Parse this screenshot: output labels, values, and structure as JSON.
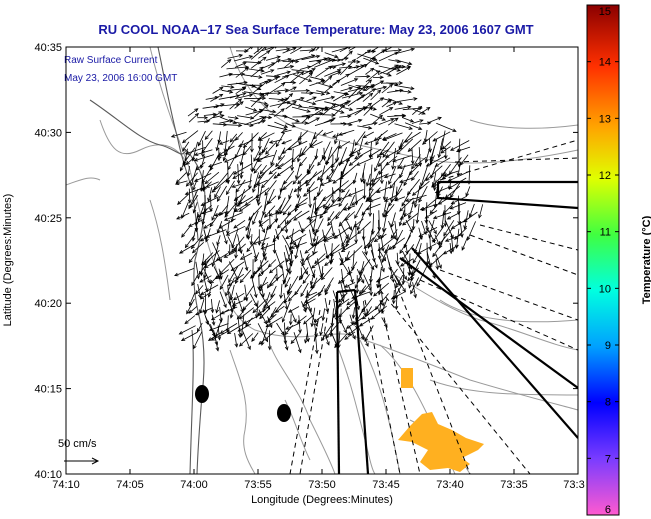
{
  "chart_data": {
    "type": "vector-field-map",
    "title": "RU COOL  NOAA–17  Sea Surface Temperature:  May 23, 2006 1607 GMT",
    "annotation_line1": "Raw Surface Current",
    "annotation_line2": "May 23, 2006 16:00 GMT",
    "xlabel": "Longitude (Degrees:Minutes)",
    "ylabel": "Latitude (Degrees:Minutes)",
    "x_tick_labels": [
      "74:10",
      "74:05",
      "74:00",
      "73:55",
      "73:50",
      "73:45",
      "73:40",
      "73:35",
      "73:3"
    ],
    "y_tick_labels": [
      "40:10",
      "40:15",
      "40:20",
      "40:25",
      "40:30",
      "40:35"
    ],
    "xlim": [
      "74:10",
      "73:30"
    ],
    "ylim": [
      "40:10",
      "40:35"
    ],
    "scale_label": "50 cm/s",
    "colorbar": {
      "label": "Temperature (°C)",
      "ticks": [
        "6",
        "7",
        "8",
        "9",
        "10",
        "11",
        "12",
        "13",
        "14",
        "15"
      ],
      "min": 6,
      "max": 15,
      "colors": [
        "#ff5ad0",
        "#7a3cff",
        "#0000ff",
        "#00a0ff",
        "#00ffe0",
        "#40ff40",
        "#e0ff00",
        "#ffa500",
        "#ff3000",
        "#8b0000"
      ]
    },
    "sst_observed_range_c": [
      12,
      12.5
    ],
    "sst_color": "#ffb020"
  }
}
